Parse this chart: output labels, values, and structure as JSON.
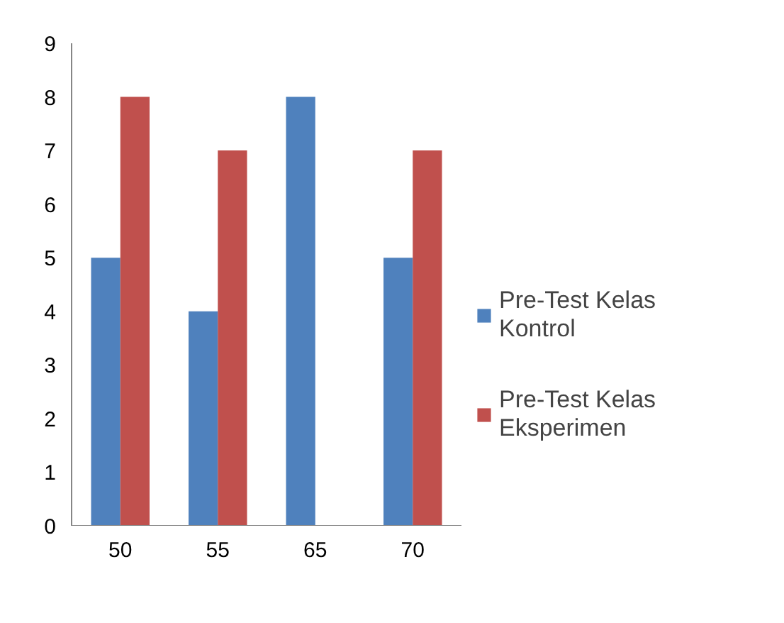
{
  "chart_data": {
    "type": "bar",
    "categories": [
      "50",
      "55",
      "65",
      "70"
    ],
    "series": [
      {
        "name": "Pre-Test Kelas Kontrol",
        "color": "#4f81bd",
        "values": [
          5,
          4,
          8,
          5
        ]
      },
      {
        "name": "Pre-Test Kelas Eksperimen",
        "color": "#c0504d",
        "values": [
          8,
          7,
          0,
          7
        ]
      }
    ],
    "ylim": [
      0,
      9
    ],
    "yticks": [
      0,
      1,
      2,
      3,
      4,
      5,
      6,
      7,
      8,
      9
    ],
    "grid": false,
    "legend": "right"
  }
}
